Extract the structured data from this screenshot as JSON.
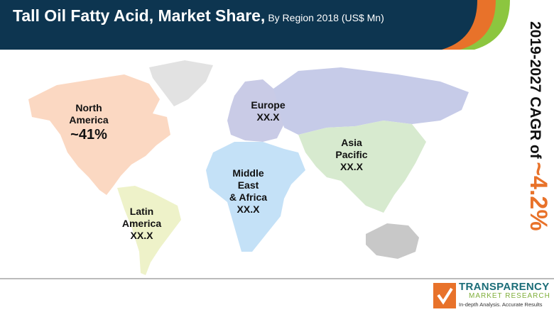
{
  "header": {
    "title": "Tall Oil Fatty Acid, Market Share,",
    "subtitle": "By Region 2018 (US$ Mn)"
  },
  "cagr": {
    "label": "2019-2027 CAGR of",
    "value": "~4.2%"
  },
  "regions": [
    {
      "name": "North America",
      "line1": "North",
      "line2": "America",
      "value": "~41%",
      "color": "#fbd8c2"
    },
    {
      "name": "Europe",
      "line1": "Europe",
      "value": "XX.X",
      "color": "#c9cbe6"
    },
    {
      "name": "Asia Pacific",
      "line1": "Asia",
      "line2": "Pacific",
      "value": "XX.X",
      "color": "#d7eacf"
    },
    {
      "name": "Middle East & Africa",
      "line1": "Middle",
      "line2": "East",
      "line3": "& Africa",
      "value": "XX.X",
      "color": "#c4e1f7"
    },
    {
      "name": "Latin America",
      "line1": "Latin",
      "line2": "America",
      "value": "XX.X",
      "color": "#eef2c9"
    }
  ],
  "colors": {
    "header": "#0d3550",
    "accent_orange": "#e8722a",
    "accent_green": "#8cc63f"
  },
  "logo": {
    "name": "TRANSPARENCY",
    "sub": "MARKET RESEARCH",
    "tagline": "In-depth Analysis. Accurate Results"
  }
}
